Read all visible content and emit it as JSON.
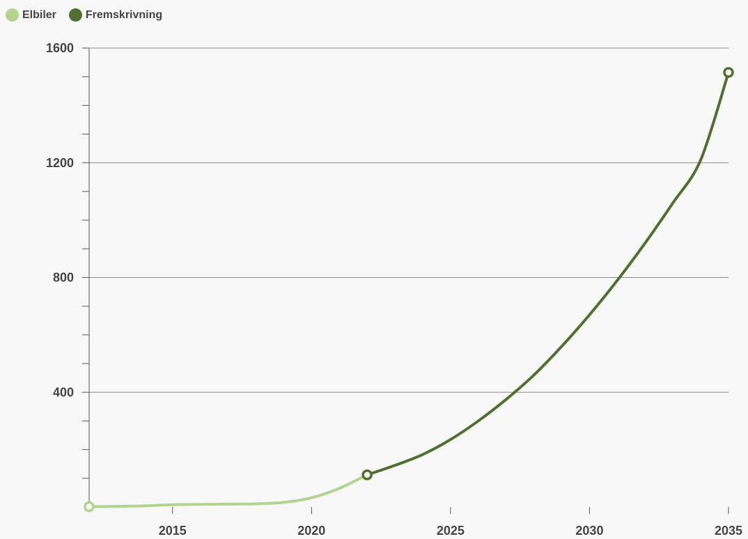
{
  "colors": {
    "elbiler": "#b4d38e",
    "fremskrivning": "#526f31",
    "grid": "#8a8a8a",
    "axis": "#555555",
    "background": "#f8f8f8"
  },
  "chart_data": {
    "type": "line",
    "title": "",
    "xlabel": "",
    "ylabel": "",
    "xlim": [
      2012,
      2035
    ],
    "ylim": [
      0,
      1600
    ],
    "x_ticks": [
      "2015",
      "2020",
      "2025",
      "2030",
      "2035"
    ],
    "y_ticks": [
      "400",
      "800",
      "1200",
      "1600"
    ],
    "grid": true,
    "legend_position": "top-left",
    "series": [
      {
        "name": "Elbiler",
        "x": [
          2012,
          2013,
          2014,
          2015,
          2016,
          2017,
          2018,
          2019,
          2020,
          2021,
          2022
        ],
        "y": [
          1,
          2,
          4,
          8,
          9,
          10,
          11,
          16,
          32,
          65,
          112
        ]
      },
      {
        "name": "Fremskrivning",
        "x": [
          2022,
          2023,
          2024,
          2025,
          2026,
          2027,
          2028,
          2029,
          2030,
          2031,
          2032,
          2033,
          2034,
          2035
        ],
        "y": [
          112,
          145,
          183,
          235,
          300,
          375,
          460,
          560,
          670,
          790,
          920,
          1060,
          1210,
          1515
        ]
      }
    ]
  }
}
